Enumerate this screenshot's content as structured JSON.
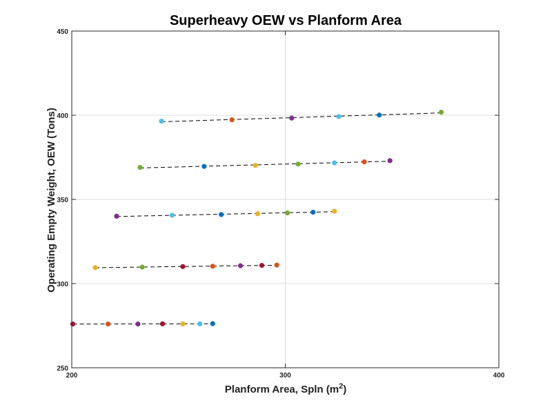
{
  "chart_data": {
    "type": "scatter",
    "title": "Superheavy OEW vs Planform Area",
    "xlabel_main": "Planform Area, Spln (m",
    "xlabel_sup": "2",
    "xlabel_tail": ")",
    "ylabel": "Operating Empty Weight, OEW (Tons)",
    "xlim": [
      200,
      400
    ],
    "ylim": [
      250,
      450
    ],
    "xticks": [
      200,
      300,
      400
    ],
    "yticks": [
      250,
      300,
      350,
      400,
      450
    ],
    "grid": "major",
    "marker_colors": [
      "#0072BD",
      "#D95319",
      "#EDB120",
      "#7E2F8E",
      "#77AC30",
      "#4DBEEE",
      "#A2142F"
    ],
    "series": [
      {
        "points": [
          [
            200.5,
            276
          ],
          [
            217,
            276
          ],
          [
            231,
            276
          ],
          [
            242.5,
            276.1
          ],
          [
            252,
            276.1
          ],
          [
            260,
            276.1
          ],
          [
            266,
            276.2
          ]
        ],
        "colors": [
          "#A2142F",
          "#D95319",
          "#7E2F8E",
          "#A2142F",
          "#EDB120",
          "#4DBEEE",
          "#0072BD"
        ]
      },
      {
        "points": [
          [
            211,
            309.5
          ],
          [
            233,
            309.8
          ],
          [
            252,
            310.1
          ],
          [
            266,
            310.3
          ],
          [
            279,
            310.6
          ],
          [
            289,
            310.8
          ],
          [
            296,
            311
          ]
        ],
        "colors": [
          "#EDB120",
          "#77AC30",
          "#A2142F",
          "#D95319",
          "#7E2F8E",
          "#A2142F",
          "#D95319"
        ]
      },
      {
        "points": [
          [
            221,
            340
          ],
          [
            247,
            340.6
          ],
          [
            270,
            341
          ],
          [
            287,
            341.5
          ],
          [
            301,
            342
          ],
          [
            313,
            342.4
          ],
          [
            323,
            343
          ]
        ],
        "colors": [
          "#7E2F8E",
          "#4DBEEE",
          "#0072BD",
          "#EDB120",
          "#77AC30",
          "#0072BD",
          "#EDB120"
        ]
      },
      {
        "points": [
          [
            232,
            369
          ],
          [
            262,
            369.6
          ],
          [
            286,
            370.2
          ],
          [
            306,
            371
          ],
          [
            323,
            371.7
          ],
          [
            337,
            372.3
          ],
          [
            349,
            373
          ]
        ],
        "colors": [
          "#77AC30",
          "#0072BD",
          "#EDB120",
          "#77AC30",
          "#4DBEEE",
          "#D95319",
          "#7E2F8E"
        ]
      },
      {
        "points": [
          [
            242,
            396.5
          ],
          [
            275,
            397.3
          ],
          [
            303,
            398.3
          ],
          [
            325,
            399.2
          ],
          [
            344,
            400.1
          ],
          [
            373,
            401.8
          ]
        ],
        "colors": [
          "#4DBEEE",
          "#D95319",
          "#7E2F8E",
          "#4DBEEE",
          "#0072BD",
          "#77AC30"
        ]
      }
    ]
  }
}
